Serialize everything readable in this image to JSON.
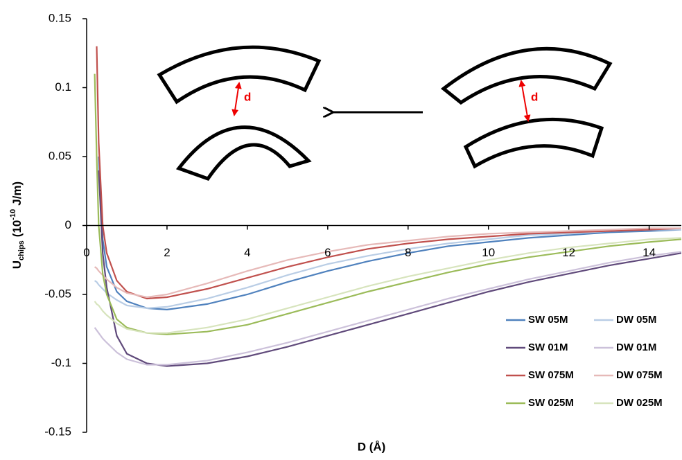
{
  "chart_data": {
    "type": "line",
    "x_label": "D (Å)",
    "y_label": {
      "main": "U",
      "sub": "chips",
      "mid": "(10",
      "sup": "-10",
      "end": "J/m)"
    },
    "annotations": [
      "d",
      "d"
    ],
    "x": [
      0.2,
      0.25,
      0.3,
      0.4,
      0.5,
      0.75,
      1,
      1.5,
      2,
      3,
      4,
      5,
      6,
      7,
      8,
      9,
      10,
      11,
      12,
      13,
      14,
      14.8
    ],
    "series": [
      {
        "name": "SW 05M",
        "color": "#4f81bd",
        "values": [
          null,
          null,
          0.05,
          -0.01,
          -0.03,
          -0.048,
          -0.055,
          -0.06,
          -0.061,
          -0.057,
          -0.05,
          -0.041,
          -0.033,
          -0.026,
          -0.02,
          -0.015,
          -0.012,
          -0.009,
          -0.007,
          -0.005,
          -0.004,
          -0.003
        ]
      },
      {
        "name": "DW 05M",
        "color": "#b9cde5",
        "values": [
          -0.04,
          -0.041,
          -0.043,
          -0.046,
          -0.049,
          -0.054,
          -0.058,
          -0.06,
          -0.059,
          -0.053,
          -0.045,
          -0.036,
          -0.028,
          -0.022,
          -0.017,
          -0.013,
          -0.01,
          -0.007,
          -0.006,
          -0.004,
          -0.003,
          -0.003
        ]
      },
      {
        "name": "SW 01M",
        "color": "#604a7b",
        "values": [
          null,
          null,
          0.04,
          -0.02,
          -0.045,
          -0.08,
          -0.093,
          -0.1,
          -0.102,
          -0.1,
          -0.095,
          -0.088,
          -0.08,
          -0.072,
          -0.064,
          -0.056,
          -0.048,
          -0.041,
          -0.035,
          -0.029,
          -0.024,
          -0.02
        ]
      },
      {
        "name": "DW 01M",
        "color": "#ccc1da",
        "values": [
          -0.074,
          -0.076,
          -0.078,
          -0.082,
          -0.085,
          -0.092,
          -0.097,
          -0.101,
          -0.101,
          -0.098,
          -0.092,
          -0.085,
          -0.077,
          -0.069,
          -0.061,
          -0.053,
          -0.046,
          -0.039,
          -0.033,
          -0.027,
          -0.022,
          -0.019
        ]
      },
      {
        "name": "SW 075M",
        "color": "#c0504d",
        "values": [
          null,
          0.13,
          0.06,
          0.0,
          -0.02,
          -0.04,
          -0.048,
          -0.053,
          -0.052,
          -0.046,
          -0.038,
          -0.03,
          -0.023,
          -0.017,
          -0.013,
          -0.01,
          -0.008,
          -0.006,
          -0.005,
          -0.004,
          -0.003,
          -0.002
        ]
      },
      {
        "name": "DW 075M",
        "color": "#e6b9b8",
        "values": [
          -0.03,
          -0.031,
          -0.033,
          -0.036,
          -0.039,
          -0.045,
          -0.049,
          -0.052,
          -0.05,
          -0.042,
          -0.033,
          -0.025,
          -0.019,
          -0.014,
          -0.011,
          -0.008,
          -0.006,
          -0.005,
          -0.004,
          -0.003,
          -0.002,
          -0.002
        ]
      },
      {
        "name": "SW 025M",
        "color": "#9bbb59",
        "values": [
          0.11,
          0.05,
          0.0,
          -0.035,
          -0.05,
          -0.068,
          -0.074,
          -0.078,
          -0.079,
          -0.077,
          -0.072,
          -0.064,
          -0.056,
          -0.048,
          -0.041,
          -0.034,
          -0.028,
          -0.023,
          -0.019,
          -0.015,
          -0.012,
          -0.01
        ]
      },
      {
        "name": "DW 025M",
        "color": "#d7e4bd",
        "values": [
          -0.055,
          -0.057,
          -0.058,
          -0.062,
          -0.065,
          -0.071,
          -0.075,
          -0.078,
          -0.078,
          -0.074,
          -0.068,
          -0.06,
          -0.052,
          -0.044,
          -0.037,
          -0.031,
          -0.025,
          -0.02,
          -0.016,
          -0.013,
          -0.01,
          -0.009
        ]
      }
    ],
    "xlim": [
      0,
      14.8
    ],
    "ylim": [
      -0.15,
      0.15
    ],
    "xticks": [
      0,
      2,
      4,
      6,
      8,
      10,
      12,
      14
    ],
    "yticks": [
      0.15,
      0.1,
      0.05,
      0,
      -0.05,
      -0.1,
      -0.15
    ],
    "legend": "lower-right",
    "grid": false
  }
}
